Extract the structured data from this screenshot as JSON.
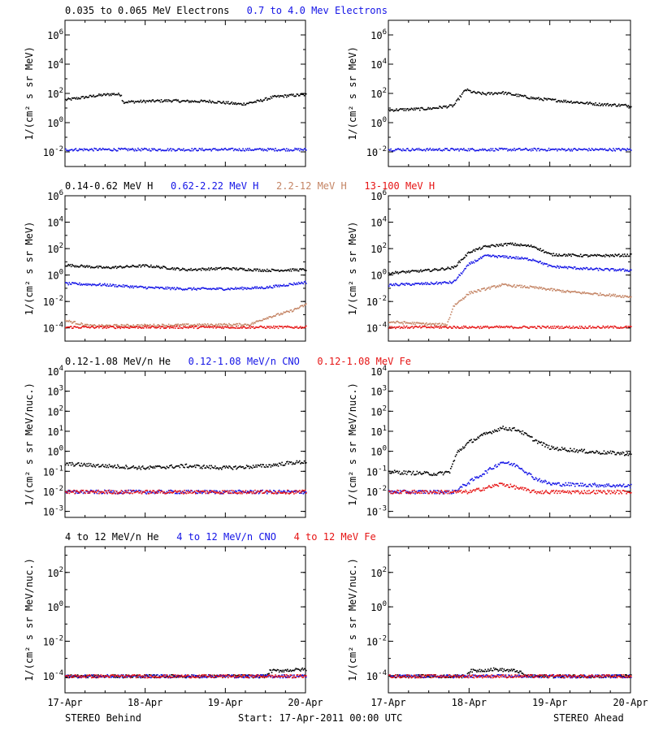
{
  "colors": {
    "black": "#000000",
    "blue": "#1414e6",
    "tan": "#c48464",
    "red": "#e61414"
  },
  "rows": [
    {
      "legend": [
        {
          "text": "0.035 to 0.065 MeV Electrons",
          "color": "#000000"
        },
        {
          "text": "0.7 to 4.0 Mev Electrons",
          "color": "#1414e6"
        }
      ],
      "ylabel": "1/(cm² s sr MeV)",
      "ytick_exponents": [
        -2,
        0,
        2,
        4,
        6
      ],
      "ylim_log10": [
        -3,
        7
      ]
    },
    {
      "legend": [
        {
          "text": "0.14-0.62 MeV H",
          "color": "#000000"
        },
        {
          "text": "0.62-2.22 MeV H",
          "color": "#1414e6"
        },
        {
          "text": "2.2-12 MeV H",
          "color": "#c48464"
        },
        {
          "text": "13-100 MeV H",
          "color": "#e61414"
        }
      ],
      "ylabel": "1/(cm² s sr MeV)",
      "ytick_exponents": [
        -4,
        -2,
        0,
        2,
        4,
        6
      ],
      "ylim_log10": [
        -5,
        6
      ]
    },
    {
      "legend": [
        {
          "text": "0.12-1.08 MeV/n He",
          "color": "#000000"
        },
        {
          "text": "0.12-1.08 MeV/n CNO",
          "color": "#1414e6"
        },
        {
          "text": "0.12-1.08 MeV Fe",
          "color": "#e61414"
        }
      ],
      "ylabel": "1/(cm² s sr MeV/nuc.)",
      "ytick_exponents": [
        -3,
        -2,
        -1,
        0,
        1,
        2,
        3,
        4
      ],
      "ylim_log10": [
        -3.3,
        4
      ]
    },
    {
      "legend": [
        {
          "text": "4 to 12 MeV/n He",
          "color": "#000000"
        },
        {
          "text": "4 to 12 MeV/n CNO",
          "color": "#1414e6"
        },
        {
          "text": "4 to 12 MeV Fe",
          "color": "#e61414"
        }
      ],
      "ylabel": "1/(cm² s sr MeV/nuc.)",
      "ytick_exponents": [
        -4,
        -2,
        0,
        2
      ],
      "ylim_log10": [
        -5,
        3.5
      ]
    }
  ],
  "xticks": [
    "17-Apr",
    "18-Apr",
    "19-Apr",
    "20-Apr"
  ],
  "footer": {
    "left": "STEREO Behind",
    "center": "Start: 17-Apr-2011 00:00 UTC",
    "right": "STEREO Ahead"
  },
  "chart_data": {
    "type": "scatter",
    "x_axis": "days since 17-Apr-2011 00:00 UTC",
    "xlim": [
      0,
      3
    ],
    "y_scale": "log10",
    "panels": [
      {
        "row": 0,
        "spacecraft": "STEREO Behind",
        "series": [
          {
            "name": "0.035 to 0.065 MeV Electrons",
            "color": "#000000",
            "x": [
              0,
              0.2,
              0.4,
              0.6,
              0.7,
              0.71,
              1.0,
              1.3,
              1.5,
              1.8,
              2.0,
              2.2,
              2.4,
              2.6,
              2.8,
              3.0
            ],
            "log10y": [
              1.6,
              1.75,
              1.9,
              2.0,
              1.95,
              1.45,
              1.5,
              1.55,
              1.5,
              1.5,
              1.4,
              1.3,
              1.5,
              1.8,
              1.9,
              1.95
            ]
          },
          {
            "name": "0.7 to 4.0 Mev Electrons",
            "color": "#1414e6",
            "x": [
              0,
              1.5,
              3.0
            ],
            "log10y": [
              -1.8,
              -1.8,
              -1.8
            ]
          }
        ]
      },
      {
        "row": 0,
        "spacecraft": "STEREO Ahead",
        "series": [
          {
            "name": "0.035 to 0.065 MeV Electrons",
            "color": "#000000",
            "x": [
              0,
              0.5,
              0.8,
              0.95,
              1.05,
              1.2,
              1.4,
              1.8,
              2.2,
              2.6,
              3.0
            ],
            "log10y": [
              0.9,
              1.0,
              1.2,
              2.3,
              2.1,
              2.0,
              2.1,
              1.7,
              1.5,
              1.3,
              1.2
            ]
          },
          {
            "name": "0.7 to 4.0 Mev Electrons",
            "color": "#1414e6",
            "x": [
              0,
              1.5,
              3.0
            ],
            "log10y": [
              -1.8,
              -1.8,
              -1.8
            ]
          }
        ]
      },
      {
        "row": 1,
        "spacecraft": "STEREO Behind",
        "series": [
          {
            "name": "0.14-0.62 MeV H",
            "color": "#000000",
            "x": [
              0,
              0.5,
              1.0,
              1.5,
              2.0,
              2.5,
              3.0
            ],
            "log10y": [
              0.8,
              0.6,
              0.75,
              0.45,
              0.55,
              0.4,
              0.45
            ]
          },
          {
            "name": "0.62-2.22 MeV H",
            "color": "#1414e6",
            "x": [
              0,
              0.5,
              1.0,
              1.5,
              2.0,
              2.5,
              3.0
            ],
            "log10y": [
              -0.6,
              -0.7,
              -0.9,
              -1.0,
              -1.0,
              -0.9,
              -0.5
            ]
          },
          {
            "name": "2.2-12 MeV H",
            "color": "#c48464",
            "x": [
              0,
              0.3,
              2.3,
              2.5,
              2.8,
              3.0
            ],
            "log10y": [
              -3.4,
              -3.8,
              -3.7,
              -3.2,
              -2.7,
              -2.2
            ]
          },
          {
            "name": "13-100 MeV H",
            "color": "#e61414",
            "x": [
              0,
              1.5,
              3.0
            ],
            "log10y": [
              -3.9,
              -3.9,
              -3.9
            ]
          }
        ]
      },
      {
        "row": 1,
        "spacecraft": "STEREO Ahead",
        "series": [
          {
            "name": "0.14-0.62 MeV H",
            "color": "#000000",
            "x": [
              0,
              0.5,
              0.8,
              1.0,
              1.2,
              1.5,
              1.8,
              2.0,
              2.5,
              3.0
            ],
            "log10y": [
              0.2,
              0.4,
              0.6,
              1.8,
              2.2,
              2.4,
              2.2,
              1.6,
              1.5,
              1.55
            ]
          },
          {
            "name": "0.62-2.22 MeV H",
            "color": "#1414e6",
            "x": [
              0,
              0.5,
              0.8,
              1.0,
              1.2,
              1.5,
              1.8,
              2.0,
              2.5,
              3.0
            ],
            "log10y": [
              -0.7,
              -0.6,
              -0.5,
              0.9,
              1.5,
              1.4,
              1.2,
              0.7,
              0.5,
              0.4
            ]
          },
          {
            "name": "2.2-12 MeV H",
            "color": "#c48464",
            "x": [
              0,
              0.6,
              0.72,
              0.8,
              1.0,
              1.4,
              1.8,
              2.2,
              2.6,
              3.0
            ],
            "log10y": [
              -3.5,
              -3.7,
              -3.7,
              -2.3,
              -1.3,
              -0.7,
              -0.9,
              -1.2,
              -1.4,
              -1.6
            ]
          },
          {
            "name": "13-100 MeV H",
            "color": "#e61414",
            "x": [
              0,
              1.5,
              3.0
            ],
            "log10y": [
              -3.9,
              -3.9,
              -3.9
            ]
          }
        ]
      },
      {
        "row": 2,
        "spacecraft": "STEREO Behind",
        "series": [
          {
            "name": "0.12-1.08 MeV/n He",
            "color": "#000000",
            "x": [
              0,
              0.5,
              1.0,
              1.5,
              2.0,
              2.5,
              2.8,
              3.0
            ],
            "log10y": [
              -0.6,
              -0.7,
              -0.8,
              -0.7,
              -0.8,
              -0.7,
              -0.55,
              -0.5
            ]
          },
          {
            "name": "0.12-1.08 MeV/n CNO",
            "color": "#1414e6",
            "x": [
              0,
              1.5,
              3.0
            ],
            "log10y": [
              -2,
              -2,
              -2
            ]
          },
          {
            "name": "0.12-1.08 MeV Fe",
            "color": "#e61414",
            "x": [
              0,
              1.5,
              3.0
            ],
            "log10y": [
              -2,
              -2,
              -2
            ]
          }
        ]
      },
      {
        "row": 2,
        "spacecraft": "STEREO Ahead",
        "series": [
          {
            "name": "0.12-1.08 MeV/n He",
            "color": "#000000",
            "x": [
              0,
              0.6,
              0.75,
              0.85,
              1.0,
              1.2,
              1.4,
              1.6,
              1.8,
              2.0,
              2.5,
              3.0
            ],
            "log10y": [
              -1.0,
              -1.1,
              -1.0,
              0.0,
              0.5,
              0.9,
              1.2,
              1.1,
              0.6,
              0.2,
              0.0,
              -0.1
            ]
          },
          {
            "name": "0.12-1.08 MeV/n CNO",
            "color": "#1414e6",
            "x": [
              0,
              0.8,
              1.0,
              1.2,
              1.4,
              1.6,
              1.8,
              2.0,
              3.0
            ],
            "log10y": [
              -2,
              -2,
              -1.5,
              -1.0,
              -0.5,
              -0.7,
              -1.3,
              -1.6,
              -1.7
            ]
          },
          {
            "name": "0.12-1.08 MeV Fe",
            "color": "#e61414",
            "x": [
              0,
              1.0,
              1.4,
              1.8,
              3.0
            ],
            "log10y": [
              -2,
              -2,
              -1.6,
              -2,
              -2
            ]
          }
        ]
      },
      {
        "row": 3,
        "spacecraft": "STEREO Behind",
        "series": [
          {
            "name": "4 to 12 MeV/n He",
            "color": "#000000",
            "x": [
              0,
              2.5,
              2.55,
              3.0
            ],
            "log10y": [
              -4,
              -4,
              -3.7,
              -3.6
            ]
          },
          {
            "name": "4 to 12 MeV/n CNO",
            "color": "#1414e6",
            "x": [
              0,
              3.0
            ],
            "log10y": [
              -4,
              -4
            ]
          },
          {
            "name": "4 to 12 MeV Fe",
            "color": "#e61414",
            "x": [
              0,
              3.0
            ],
            "log10y": [
              -4,
              -4
            ]
          }
        ]
      },
      {
        "row": 3,
        "spacecraft": "STEREO Ahead",
        "series": [
          {
            "name": "4 to 12 MeV/n He",
            "color": "#000000",
            "x": [
              0,
              0.95,
              1.0,
              1.3,
              1.6,
              1.7,
              3.0
            ],
            "log10y": [
              -4,
              -4,
              -3.7,
              -3.6,
              -3.7,
              -4,
              -4
            ]
          },
          {
            "name": "4 to 12 MeV/n CNO",
            "color": "#1414e6",
            "x": [
              0,
              3.0
            ],
            "log10y": [
              -4,
              -4
            ]
          },
          {
            "name": "4 to 12 MeV Fe",
            "color": "#e61414",
            "x": [
              0,
              3.0
            ],
            "log10y": [
              -4,
              -4
            ]
          }
        ]
      }
    ]
  }
}
